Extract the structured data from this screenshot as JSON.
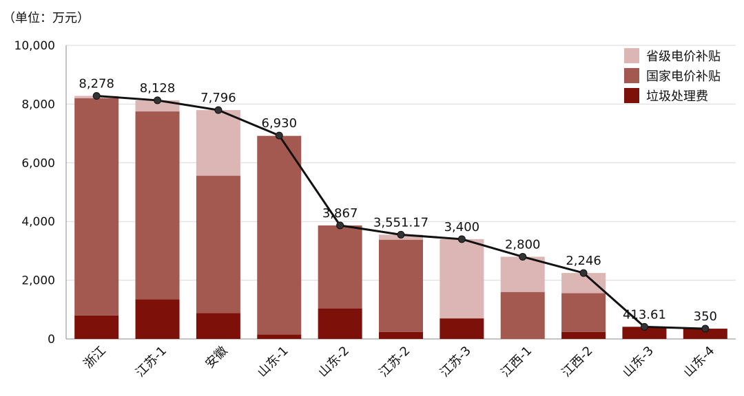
{
  "unit_label": "（单位：万元）",
  "colors": {
    "provincial": "#dcb6b4",
    "national": "#a3594f",
    "garbage": "#7d1008",
    "line": "#111111",
    "grid": "#d9d9d9"
  },
  "chart_data": {
    "type": "bar",
    "stacked": true,
    "categories": [
      "浙江",
      "江苏-1",
      "安徽",
      "山东-1",
      "山东-2",
      "江苏-2",
      "江苏-3",
      "江西-1",
      "江西-2",
      "山东-3",
      "山东-4"
    ],
    "series": [
      {
        "name": "垃圾处理费",
        "key": "garbage",
        "values": [
          800,
          1350,
          880,
          150,
          1040,
          240,
          700,
          0,
          240,
          413.61,
          350
        ]
      },
      {
        "name": "国家电价补贴",
        "key": "national",
        "values": [
          7400,
          6400,
          4680,
          6760,
          2827,
          3140,
          0,
          1600,
          1320,
          0,
          0
        ]
      },
      {
        "name": "省级电价补贴",
        "key": "provincial",
        "values": [
          78,
          378,
          2236,
          20,
          0,
          171.17,
          2700,
          1200,
          686,
          0,
          0
        ]
      }
    ],
    "totals": [
      8278,
      8128,
      7796,
      6930,
      3867,
      3551.17,
      3400,
      2800,
      2246,
      413.61,
      350
    ],
    "total_labels": [
      "8,278",
      "8,128",
      "7,796",
      "6,930",
      "3,867",
      "3,551.17",
      "3,400",
      "2,800",
      "2,246",
      "413.61",
      "350"
    ],
    "y_ticks": [
      0,
      2000,
      4000,
      6000,
      8000,
      10000
    ],
    "y_tick_labels": [
      "0",
      "2,000",
      "4,000",
      "6,000",
      "8,000",
      "10,000"
    ],
    "ylim": [
      0,
      10000
    ],
    "legend": [
      "省级电价补贴",
      "国家电价补贴",
      "垃圾处理费"
    ],
    "legend_position": "top-right",
    "grid": true
  }
}
